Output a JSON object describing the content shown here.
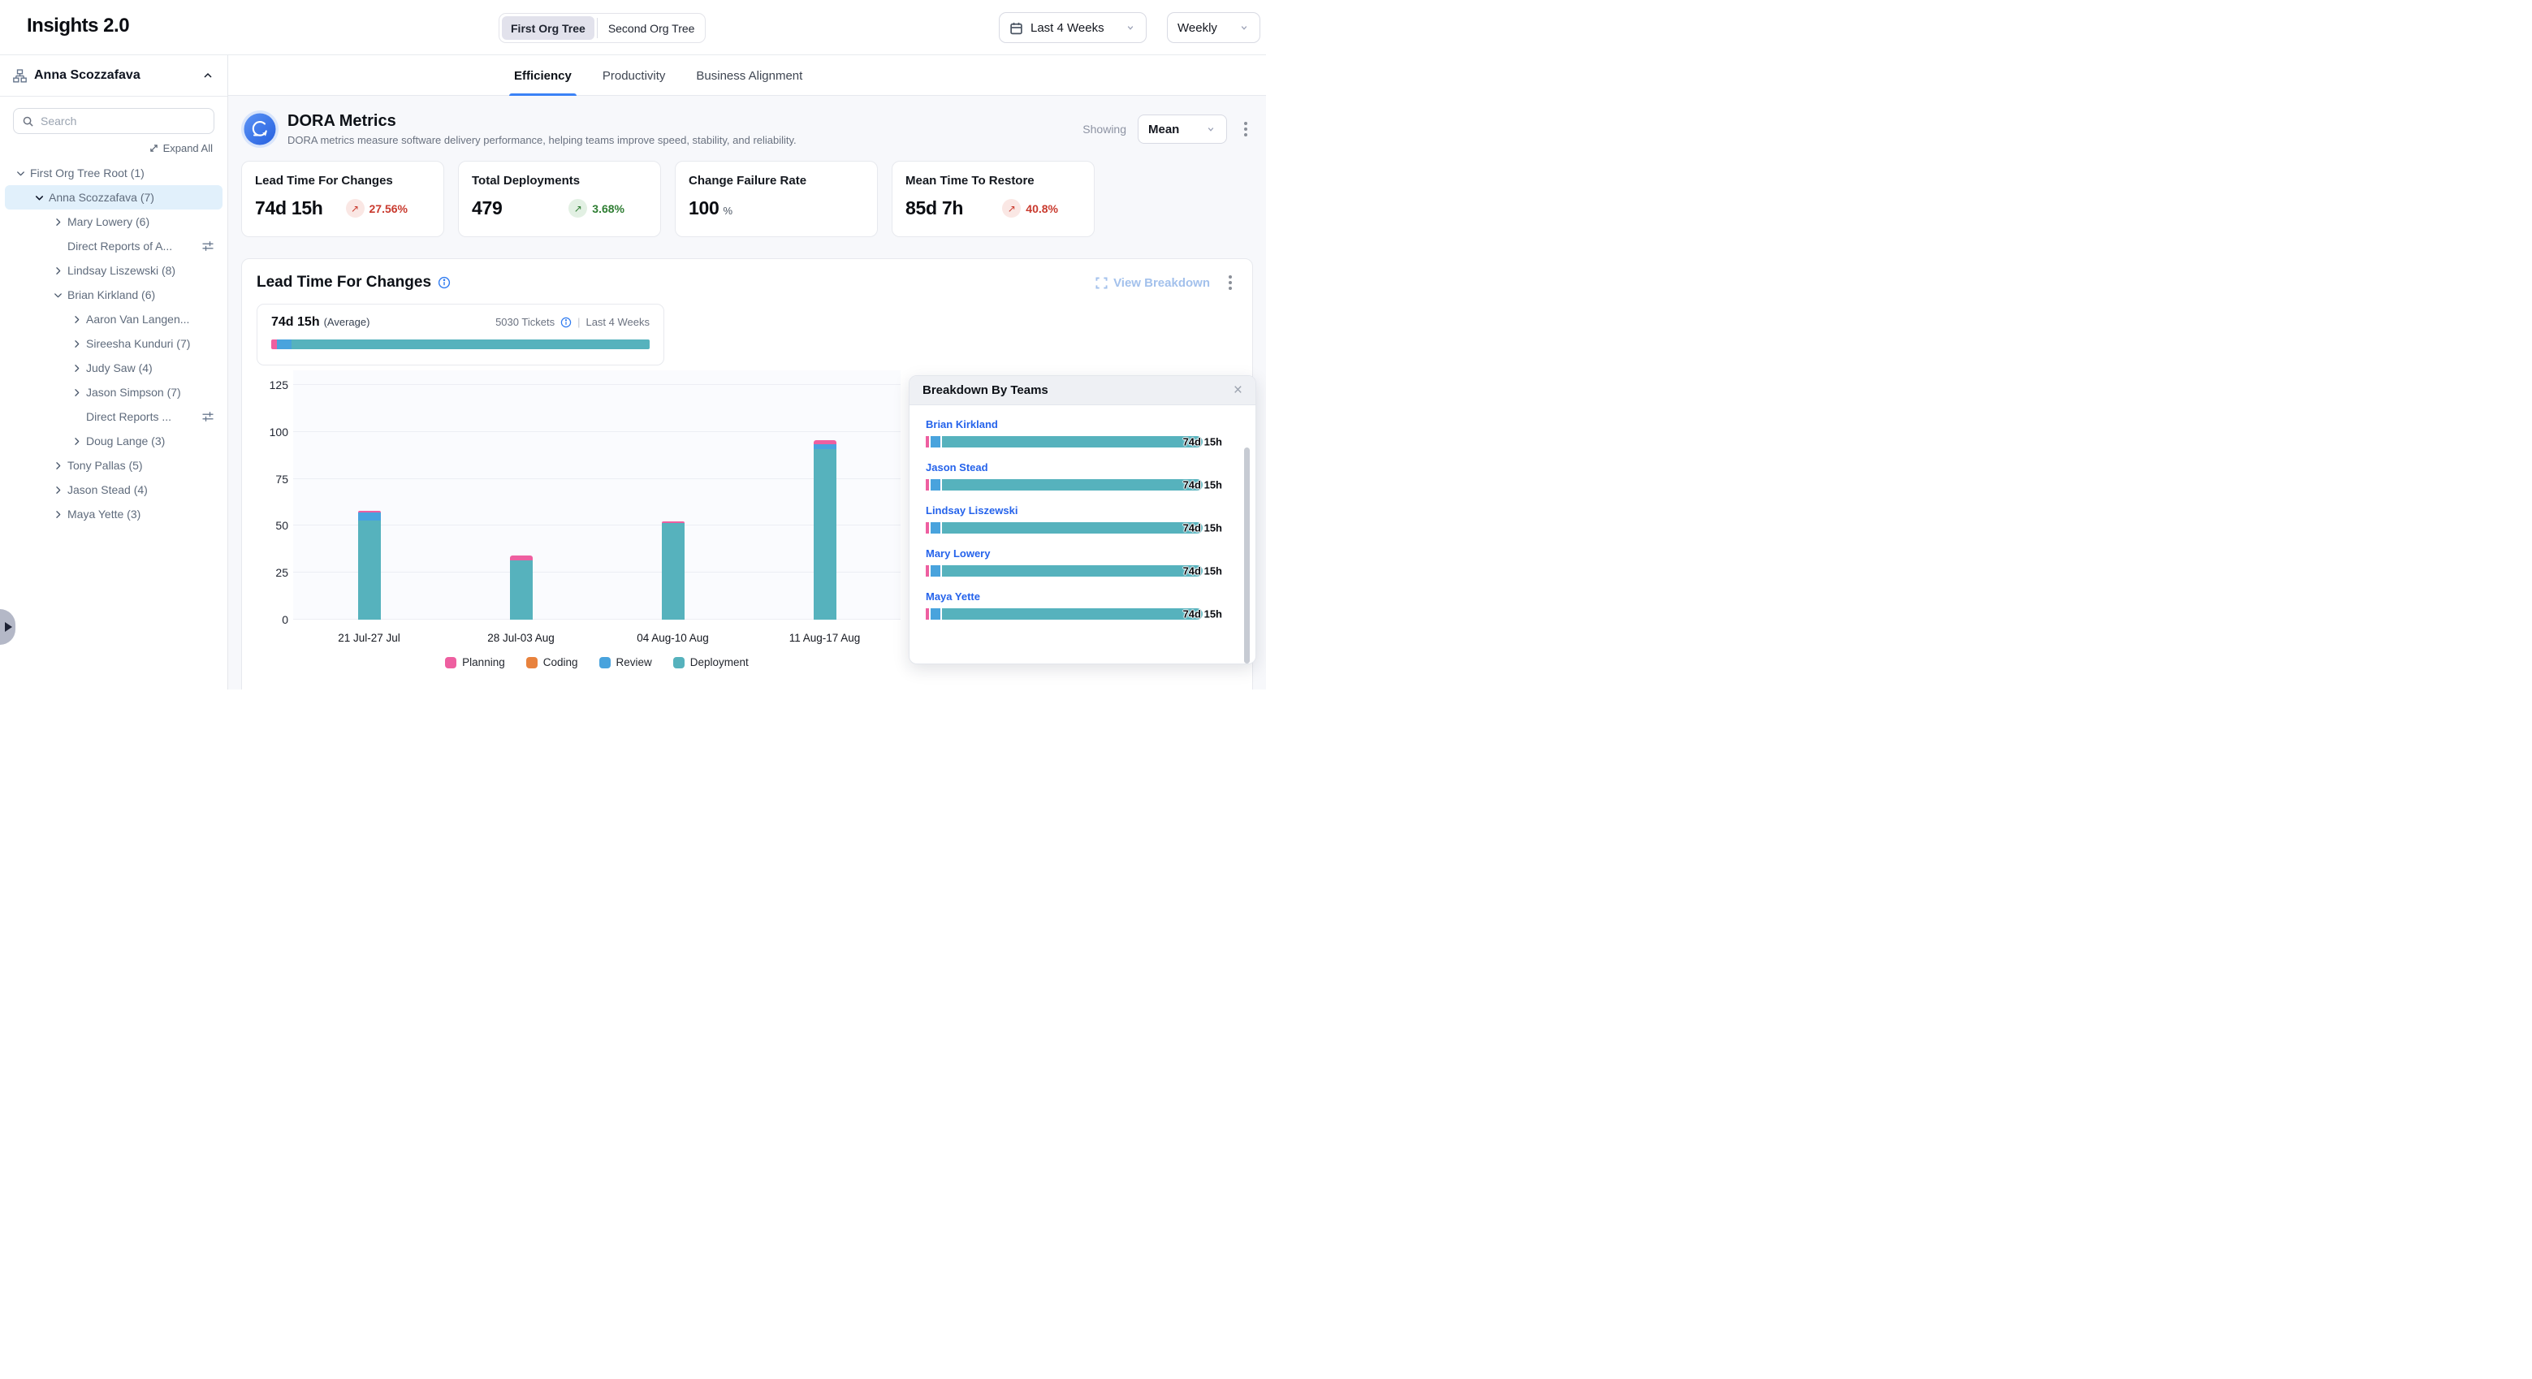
{
  "app": {
    "title": "Insights 2.0"
  },
  "header": {
    "org_toggle": [
      {
        "label": "First Org Tree",
        "active": true
      },
      {
        "label": "Second Org Tree",
        "active": false
      }
    ],
    "date_range": "Last 4 Weeks",
    "granularity": "Weekly"
  },
  "sidebar": {
    "person": "Anna Scozzafava",
    "search_placeholder": "Search",
    "expand_all_label": "Expand All",
    "tree": [
      {
        "label": "First Org Tree Root (1)",
        "level": 0,
        "chevron": "down",
        "selected": false,
        "filter_icon": false
      },
      {
        "label": "Anna Scozzafava (7)",
        "level": 1,
        "chevron": "down",
        "selected": true,
        "filter_icon": false
      },
      {
        "label": "Mary Lowery (6)",
        "level": 2,
        "chevron": "right",
        "selected": false,
        "filter_icon": false
      },
      {
        "label": "Direct Reports of A...",
        "level": 2,
        "chevron": "none",
        "selected": false,
        "filter_icon": true
      },
      {
        "label": "Lindsay Liszewski (8)",
        "level": 2,
        "chevron": "right",
        "selected": false,
        "filter_icon": false
      },
      {
        "label": "Brian Kirkland (6)",
        "level": 2,
        "chevron": "down",
        "selected": false,
        "filter_icon": false
      },
      {
        "label": "Aaron Van Langen...",
        "level": 3,
        "chevron": "right",
        "selected": false,
        "filter_icon": false
      },
      {
        "label": "Sireesha Kunduri (7)",
        "level": 3,
        "chevron": "right",
        "selected": false,
        "filter_icon": false
      },
      {
        "label": "Judy Saw (4)",
        "level": 3,
        "chevron": "right",
        "selected": false,
        "filter_icon": false
      },
      {
        "label": "Jason Simpson (7)",
        "level": 3,
        "chevron": "right",
        "selected": false,
        "filter_icon": false
      },
      {
        "label": "Direct Reports ...",
        "level": 3,
        "chevron": "none",
        "selected": false,
        "filter_icon": true
      },
      {
        "label": "Doug Lange (3)",
        "level": 3,
        "chevron": "right",
        "selected": false,
        "filter_icon": false
      },
      {
        "label": "Tony Pallas (5)",
        "level": 2,
        "chevron": "right",
        "selected": false,
        "filter_icon": false
      },
      {
        "label": "Jason Stead (4)",
        "level": 2,
        "chevron": "right",
        "selected": false,
        "filter_icon": false
      },
      {
        "label": "Maya Yette (3)",
        "level": 2,
        "chevron": "right",
        "selected": false,
        "filter_icon": false
      }
    ]
  },
  "tabs": [
    {
      "label": "Efficiency",
      "active": true
    },
    {
      "label": "Productivity",
      "active": false
    },
    {
      "label": "Business Alignment",
      "active": false
    }
  ],
  "dora": {
    "title": "DORA Metrics",
    "description": "DORA metrics measure software delivery performance, helping teams improve speed, stability, and reliability.",
    "showing_label": "Showing",
    "showing_value": "Mean",
    "cards": [
      {
        "title": "Lead Time For Changes",
        "value": "74d 15h",
        "unit": "",
        "badge": {
          "arrow": "↗",
          "text": "27.56%",
          "tone": "negative"
        }
      },
      {
        "title": "Total Deployments",
        "value": "479",
        "unit": "",
        "badge": {
          "arrow": "↗",
          "text": "3.68%",
          "tone": "positive"
        }
      },
      {
        "title": "Change Failure Rate",
        "value": "100",
        "unit": "%",
        "badge": null
      },
      {
        "title": "Mean Time To Restore",
        "value": "85d 7h",
        "unit": "",
        "badge": {
          "arrow": "↗",
          "text": "40.8%",
          "tone": "negative"
        }
      }
    ]
  },
  "lead_time": {
    "title": "Lead Time For Changes",
    "view_breakdown_label": "View Breakdown",
    "average_value": "74d 15h",
    "average_suffix": "(Average)",
    "tickets": "5030 Tickets",
    "period": "Last 4 Weeks",
    "avg_bar_segments": [
      {
        "name": "Planning",
        "pct": 1.6
      },
      {
        "name": "Review",
        "pct": 3.8
      },
      {
        "name": "Deployment",
        "pct": 94.6
      }
    ]
  },
  "chart_data": {
    "type": "bar",
    "stacked": true,
    "title": "Lead Time For Changes",
    "xlabel": "",
    "ylabel": "",
    "categories": [
      "21 Jul-27 Jul",
      "28 Jul-03 Aug",
      "04 Aug-10 Aug",
      "11 Aug-17 Aug"
    ],
    "series": [
      {
        "name": "Planning",
        "color": "#ee5fa0",
        "values": [
          0.8,
          2.5,
          0.8,
          2.0
        ]
      },
      {
        "name": "Coding",
        "color": "#e8823d",
        "values": [
          0,
          0,
          0,
          0
        ]
      },
      {
        "name": "Review",
        "color": "#49a3dd",
        "values": [
          4.5,
          0,
          0,
          2.7
        ]
      },
      {
        "name": "Deployment",
        "color": "#56b2bd",
        "values": [
          52.7,
          31.5,
          51.5,
          90.8
        ]
      }
    ],
    "stack_order_bottom_to_top": [
      "Deployment",
      "Coding",
      "Review",
      "Planning"
    ],
    "yticks": [
      0,
      25,
      50,
      75,
      100,
      125
    ],
    "ylim": [
      0,
      125
    ],
    "grid": true,
    "legend_position": "bottom",
    "legend": [
      "Planning",
      "Coding",
      "Review",
      "Deployment"
    ]
  },
  "breakdown": {
    "title": "Breakdown By Teams",
    "rows": [
      {
        "name": "Brian Kirkland",
        "value": "74d 15h"
      },
      {
        "name": "Jason Stead",
        "value": "74d 15h"
      },
      {
        "name": "Lindsay Liszewski",
        "value": "74d 15h"
      },
      {
        "name": "Mary Lowery",
        "value": "74d 15h"
      },
      {
        "name": "Maya Yette",
        "value": "74d 15h"
      }
    ]
  },
  "colors": {
    "planning": "#ee5fa0",
    "coding": "#e8823d",
    "review": "#49a3dd",
    "deployment": "#56b2bd",
    "accent_blue": "#3b82f6",
    "negative": "#c93a2e",
    "positive": "#2e7d32",
    "selected_row": "#e1f0fb"
  }
}
